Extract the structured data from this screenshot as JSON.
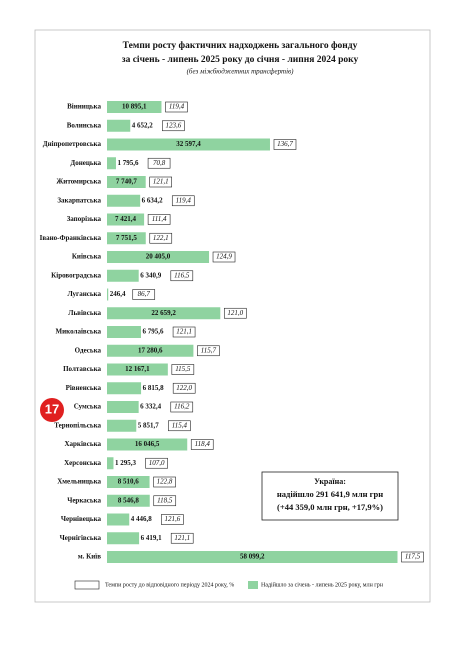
{
  "badge": "17",
  "chart_data": {
    "type": "bar",
    "title": [
      "Темпи росту фактичних надходжень загального фонду",
      "за січень - липень 2025 року до січня - липня 2024 року"
    ],
    "subtitle": "(без міжбюджетних трансфертів)",
    "categories": [
      "Вінницька",
      "Волинська",
      "Дніпропетровська",
      "Донецька",
      "Житомирська",
      "Закарпатська",
      "Запорізька",
      "Івано-Франківська",
      "Київська",
      "Кіровоградська",
      "Луганська",
      "Львівська",
      "Миколаївська",
      "Одеська",
      "Полтавська",
      "Рівненська",
      "Сумська",
      "Тернопільська",
      "Харківська",
      "Херсонська",
      "Хмельницька",
      "Черкаська",
      "Чернівецька",
      "Чернігівська",
      "м. Київ"
    ],
    "series": [
      {
        "name": "Надійшло за січень - липень 2025 року, млн грн",
        "color": "#8fd3a0",
        "values": [
          10895.1,
          4652.2,
          32597.4,
          1795.6,
          7740.7,
          6634.2,
          7421.4,
          7751.5,
          20405.0,
          6340.9,
          246.4,
          22659.2,
          6795.6,
          17280.6,
          12167.1,
          6815.8,
          6332.4,
          5851.7,
          16046.5,
          1295.3,
          8510.6,
          8546.8,
          4446.8,
          6419.1,
          58099.2
        ],
        "value_labels": [
          "10 895,1",
          "4 652,2",
          "32 597,4",
          "1 795,6",
          "7 740,7",
          "6 634,2",
          "7 421,4",
          "7 751,5",
          "20 405,0",
          "6 340,9",
          "246,4",
          "22 659,2",
          "6 795,6",
          "17 280,6",
          "12 167,1",
          "6 815,8",
          "6 332,4",
          "5 851,7",
          "16 046,5",
          "1 295,3",
          "8 510,6",
          "8 546,8",
          "4 446,8",
          "6 419,1",
          "58 099,2"
        ]
      }
    ],
    "rates": {
      "name": "Темпи росту до відповідного періоду 2024 року, %",
      "values": [
        119.4,
        123.6,
        136.7,
        70.8,
        121.1,
        119.4,
        111.4,
        122.1,
        124.9,
        116.5,
        86.7,
        121.0,
        121.1,
        115.7,
        115.5,
        122.0,
        116.2,
        115.4,
        118.4,
        107.0,
        122.8,
        118.5,
        121.6,
        121.1,
        117.5
      ],
      "value_labels": [
        "119,4",
        "123,6",
        "136,7",
        "70,8",
        "121,1",
        "119,4",
        "111,4",
        "122,1",
        "124,9",
        "116,5",
        "86,7",
        "121,0",
        "121,1",
        "115,7",
        "115,5",
        "122,0",
        "116,2",
        "115,4",
        "118,4",
        "107,0",
        "122,8",
        "118,5",
        "121,6",
        "121,1",
        "117,5"
      ]
    },
    "xlim": [
      0,
      60000
    ],
    "summary": [
      "Україна:",
      "надійшло 291 641,9 млн грн",
      "(+44 359,0 млн грн, +17,9%)"
    ]
  }
}
